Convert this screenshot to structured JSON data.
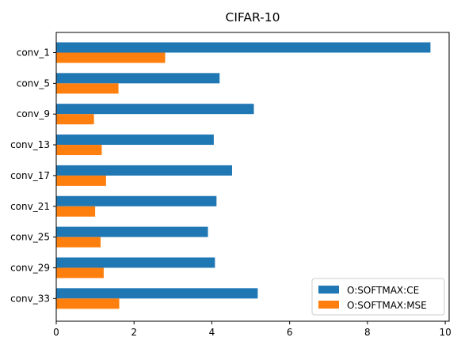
{
  "chart_data": {
    "type": "bar",
    "orientation": "horizontal",
    "title": "CIFAR-10",
    "xlabel": "",
    "ylabel": "",
    "categories": [
      "conv_1",
      "conv_5",
      "conv_9",
      "conv_13",
      "conv_17",
      "conv_21",
      "conv_25",
      "conv_29",
      "conv_33"
    ],
    "series": [
      {
        "name": "O:SOFTMAX:CE",
        "color": "#1f77b4",
        "values": [
          9.62,
          4.2,
          5.08,
          4.05,
          4.52,
          4.12,
          3.9,
          4.08,
          5.18
        ]
      },
      {
        "name": "O:SOFTMAX:MSE",
        "color": "#ff7f0e",
        "values": [
          2.8,
          1.6,
          0.97,
          1.17,
          1.28,
          1.0,
          1.14,
          1.22,
          1.62
        ]
      }
    ],
    "xlim": [
      0,
      10.1
    ],
    "xticks": [
      0,
      2,
      4,
      6,
      8,
      10
    ],
    "xtick_labels": [
      "0",
      "2",
      "4",
      "6",
      "8",
      "10"
    ],
    "grid": false,
    "legend_position": "lower-right"
  }
}
